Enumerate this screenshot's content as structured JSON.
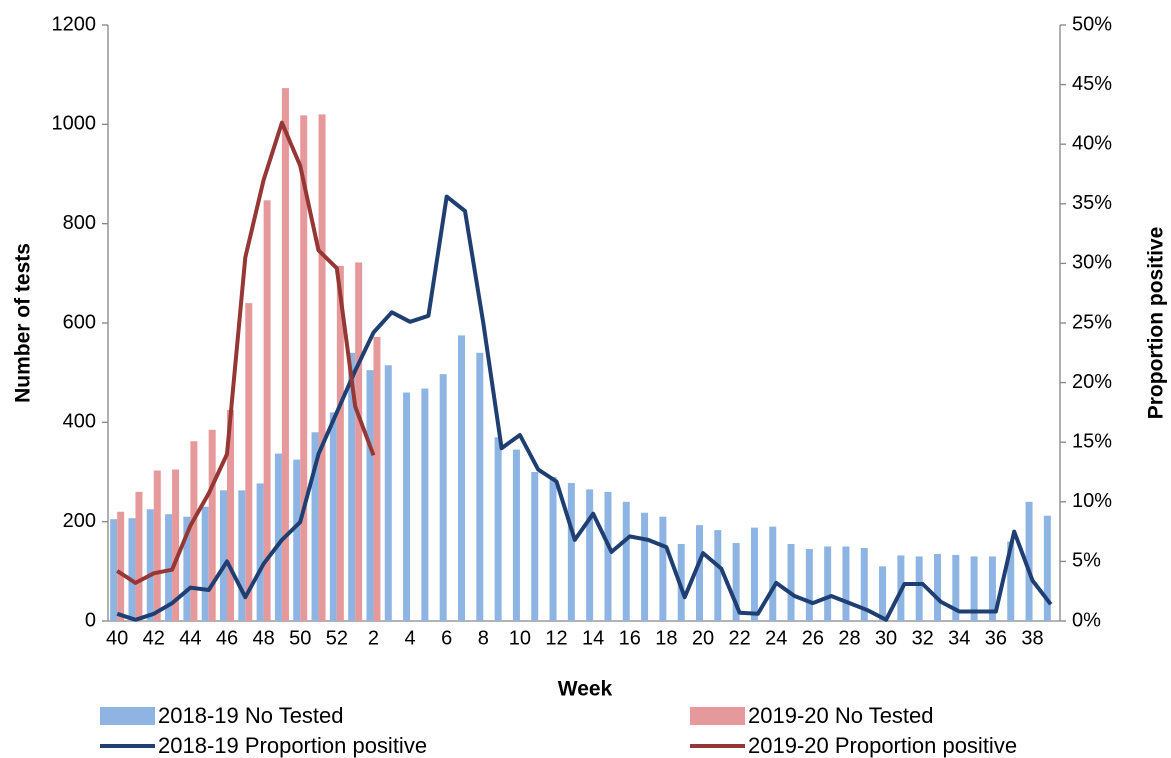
{
  "chart_data": {
    "type": "bar",
    "x_label": "Week",
    "y_label": "Number of tests",
    "y2_label": "Proportion positive",
    "categories": [
      "40",
      null,
      "42",
      null,
      "44",
      null,
      "46",
      null,
      "48",
      null,
      "50",
      null,
      "52",
      null,
      "2",
      null,
      "4",
      null,
      "6",
      null,
      "8",
      null,
      "10",
      null,
      "12",
      null,
      "14",
      null,
      "16",
      null,
      "18",
      null,
      "20",
      null,
      "22",
      null,
      "24",
      null,
      "26",
      null,
      "28",
      null,
      "30",
      null,
      "32",
      null,
      "34",
      null,
      "36",
      null,
      "38",
      null
    ],
    "ylim": [
      0,
      1200
    ],
    "yticks": [
      0,
      200,
      400,
      600,
      800,
      1000,
      1200
    ],
    "y2lim": [
      0,
      50
    ],
    "y2ticks": [
      {
        "value": 0,
        "label": "0%"
      },
      {
        "value": 5,
        "label": "5%"
      },
      {
        "value": 10,
        "label": "10%"
      },
      {
        "value": 15,
        "label": "15%"
      },
      {
        "value": 20,
        "label": "20%"
      },
      {
        "value": 25,
        "label": "25%"
      },
      {
        "value": 30,
        "label": "30%"
      },
      {
        "value": 35,
        "label": "35%"
      },
      {
        "value": 40,
        "label": "40%"
      },
      {
        "value": 45,
        "label": "45%"
      },
      {
        "value": 50,
        "label": "50%"
      }
    ],
    "series": [
      {
        "name": "2018-19 No Tested",
        "type": "bar",
        "color": "#8eb4e3",
        "values": [
          205,
          207,
          225,
          215,
          210,
          230,
          263,
          263,
          277,
          337,
          325,
          380,
          420,
          540,
          505,
          515,
          460,
          468,
          497,
          575,
          540,
          370,
          345,
          300,
          290,
          278,
          265,
          260,
          240,
          218,
          210,
          155,
          193,
          183,
          157,
          188,
          190,
          155,
          145,
          150,
          150,
          147,
          110,
          132,
          130,
          135,
          133,
          130,
          130,
          160,
          240,
          212
        ]
      },
      {
        "name": "2019-20 No Tested",
        "type": "bar",
        "color": "#e6999b",
        "values": [
          220,
          260,
          303,
          305,
          362,
          385,
          425,
          640,
          847,
          1073,
          1018,
          1020,
          715,
          722,
          572,
          null,
          null,
          null,
          null,
          null,
          null,
          null,
          null,
          null,
          null,
          null,
          null,
          null,
          null,
          null,
          null,
          null,
          null,
          null,
          null,
          null,
          null,
          null,
          null,
          null,
          null,
          null,
          null,
          null,
          null,
          null,
          null,
          null,
          null,
          null,
          null,
          null
        ]
      },
      {
        "name": "2018-19 Proportion positive",
        "type": "line",
        "axis": "y2",
        "color": "#1f3f73",
        "values": [
          0.6,
          0.1,
          0.6,
          1.5,
          2.8,
          2.6,
          5,
          2,
          4.8,
          6.8,
          8.3,
          14,
          17.5,
          21,
          24.2,
          25.9,
          25.1,
          25.6,
          35.6,
          34.4,
          25,
          14.5,
          15.6,
          12.7,
          11.7,
          6.8,
          9,
          5.8,
          7.1,
          6.8,
          6.2,
          2,
          5.7,
          4.4,
          0.7,
          0.6,
          3.2,
          2.1,
          1.5,
          2.1,
          1.5,
          0.9,
          0.1,
          3.1,
          3.1,
          1.6,
          0.8,
          0.8,
          0.8,
          7.5,
          3.4,
          1.4
        ]
      },
      {
        "name": "2019-20 Proportion positive",
        "type": "line",
        "axis": "y2",
        "color": "#953735",
        "values": [
          4.2,
          3.2,
          4,
          4.3,
          8,
          10.7,
          14,
          30.5,
          37,
          41.8,
          38.2,
          31.1,
          29.6,
          18,
          13.9,
          null,
          null,
          null,
          null,
          null,
          null,
          null,
          null,
          null,
          null,
          null,
          null,
          null,
          null,
          null,
          null,
          null,
          null,
          null,
          null,
          null,
          null,
          null,
          null,
          null,
          null,
          null,
          null,
          null,
          null,
          null,
          null,
          null,
          null,
          null,
          null,
          null
        ]
      }
    ]
  }
}
